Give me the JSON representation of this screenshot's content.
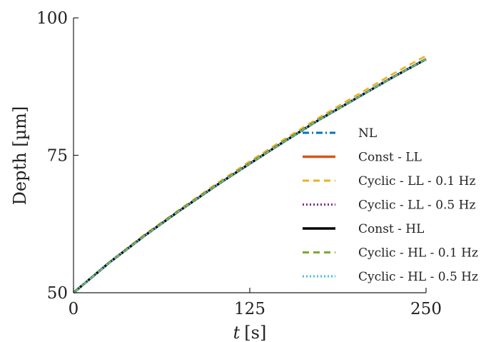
{
  "chart_data": {
    "type": "line",
    "title": "",
    "xlabel_symbol": "t",
    "xlabel_unit": "[s]",
    "ylabel": "Depth [µm]",
    "xlim": [
      0,
      250
    ],
    "ylim": [
      50,
      100
    ],
    "xticks": [
      "0",
      "125",
      "250"
    ],
    "yticks": [
      "50",
      "75",
      "100"
    ],
    "grid": false,
    "legend_position": "right",
    "x": [
      0,
      25,
      50,
      75,
      100,
      125,
      150,
      175,
      200,
      225,
      250
    ],
    "series": [
      {
        "name": "NL",
        "color": "#0072BD",
        "dash": "dashdot",
        "values": [
          50,
          55.4,
          60.3,
          64.9,
          69.3,
          73.5,
          77.6,
          81.6,
          85.3,
          89.0,
          92.5
        ]
      },
      {
        "name": "Const - LL",
        "color": "#D95319",
        "dash": "solid",
        "values": [
          50,
          55.4,
          60.3,
          64.9,
          69.3,
          73.5,
          77.6,
          81.6,
          85.3,
          89.0,
          92.5
        ]
      },
      {
        "name": "Cyclic - LL - 0.1 Hz",
        "color": "#EDB120",
        "dash": "dashed",
        "values": [
          50,
          55.5,
          60.5,
          65.1,
          69.6,
          73.9,
          78.0,
          82.0,
          85.8,
          89.6,
          93.1
        ]
      },
      {
        "name": "Cyclic - LL - 0.5 Hz",
        "color": "#7E2F8E",
        "dash": "dotted",
        "values": [
          50,
          55.4,
          60.3,
          64.9,
          69.3,
          73.5,
          77.6,
          81.6,
          85.3,
          89.0,
          92.5
        ]
      },
      {
        "name": "Const - HL",
        "color": "#000000",
        "dash": "solid",
        "values": [
          50,
          55.4,
          60.3,
          64.9,
          69.3,
          73.5,
          77.6,
          81.6,
          85.3,
          89.0,
          92.5
        ]
      },
      {
        "name": "Cyclic - HL - 0.1 Hz",
        "color": "#77AC30",
        "dash": "dashed",
        "values": [
          50,
          55.4,
          60.3,
          64.9,
          69.3,
          73.5,
          77.6,
          81.6,
          85.3,
          89.0,
          92.5
        ]
      },
      {
        "name": "Cyclic - HL - 0.5 Hz",
        "color": "#4DBEEE",
        "dash": "dotted",
        "values": [
          50,
          55.4,
          60.3,
          64.9,
          69.3,
          73.5,
          77.6,
          81.6,
          85.3,
          89.0,
          92.5
        ]
      }
    ]
  }
}
